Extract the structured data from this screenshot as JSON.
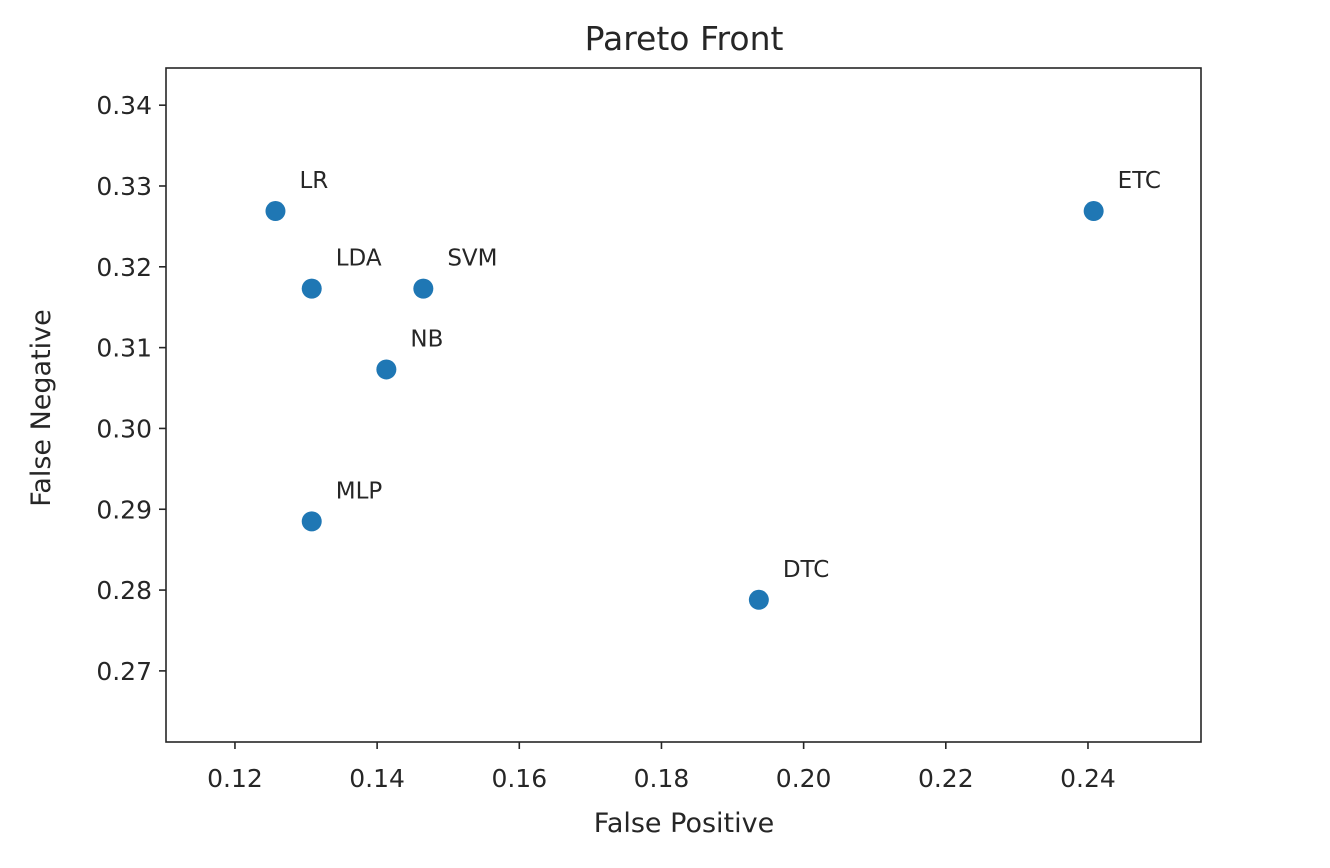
{
  "chart_data": {
    "type": "scatter",
    "title": "Pareto Front",
    "xlabel": "False Positive",
    "ylabel": "False Negative",
    "xlim": [
      0.1103,
      0.2559
    ],
    "ylim": [
      0.2612,
      0.3446
    ],
    "xticks": [
      "0.12",
      "0.14",
      "0.16",
      "0.18",
      "0.20",
      "0.22",
      "0.24"
    ],
    "yticks": [
      "0.27",
      "0.28",
      "0.29",
      "0.30",
      "0.31",
      "0.32",
      "0.33",
      "0.34"
    ],
    "grid": false,
    "color": "#1f77b4",
    "points": [
      {
        "label": "LR",
        "x": 0.1257,
        "y": 0.3269
      },
      {
        "label": "LDA",
        "x": 0.1308,
        "y": 0.3173
      },
      {
        "label": "SVM",
        "x": 0.1465,
        "y": 0.3173
      },
      {
        "label": "NB",
        "x": 0.1413,
        "y": 0.3073
      },
      {
        "label": "MLP",
        "x": 0.1308,
        "y": 0.2885
      },
      {
        "label": "DTC",
        "x": 0.1937,
        "y": 0.2788
      },
      {
        "label": "ETC",
        "x": 0.2408,
        "y": 0.3269
      }
    ]
  }
}
